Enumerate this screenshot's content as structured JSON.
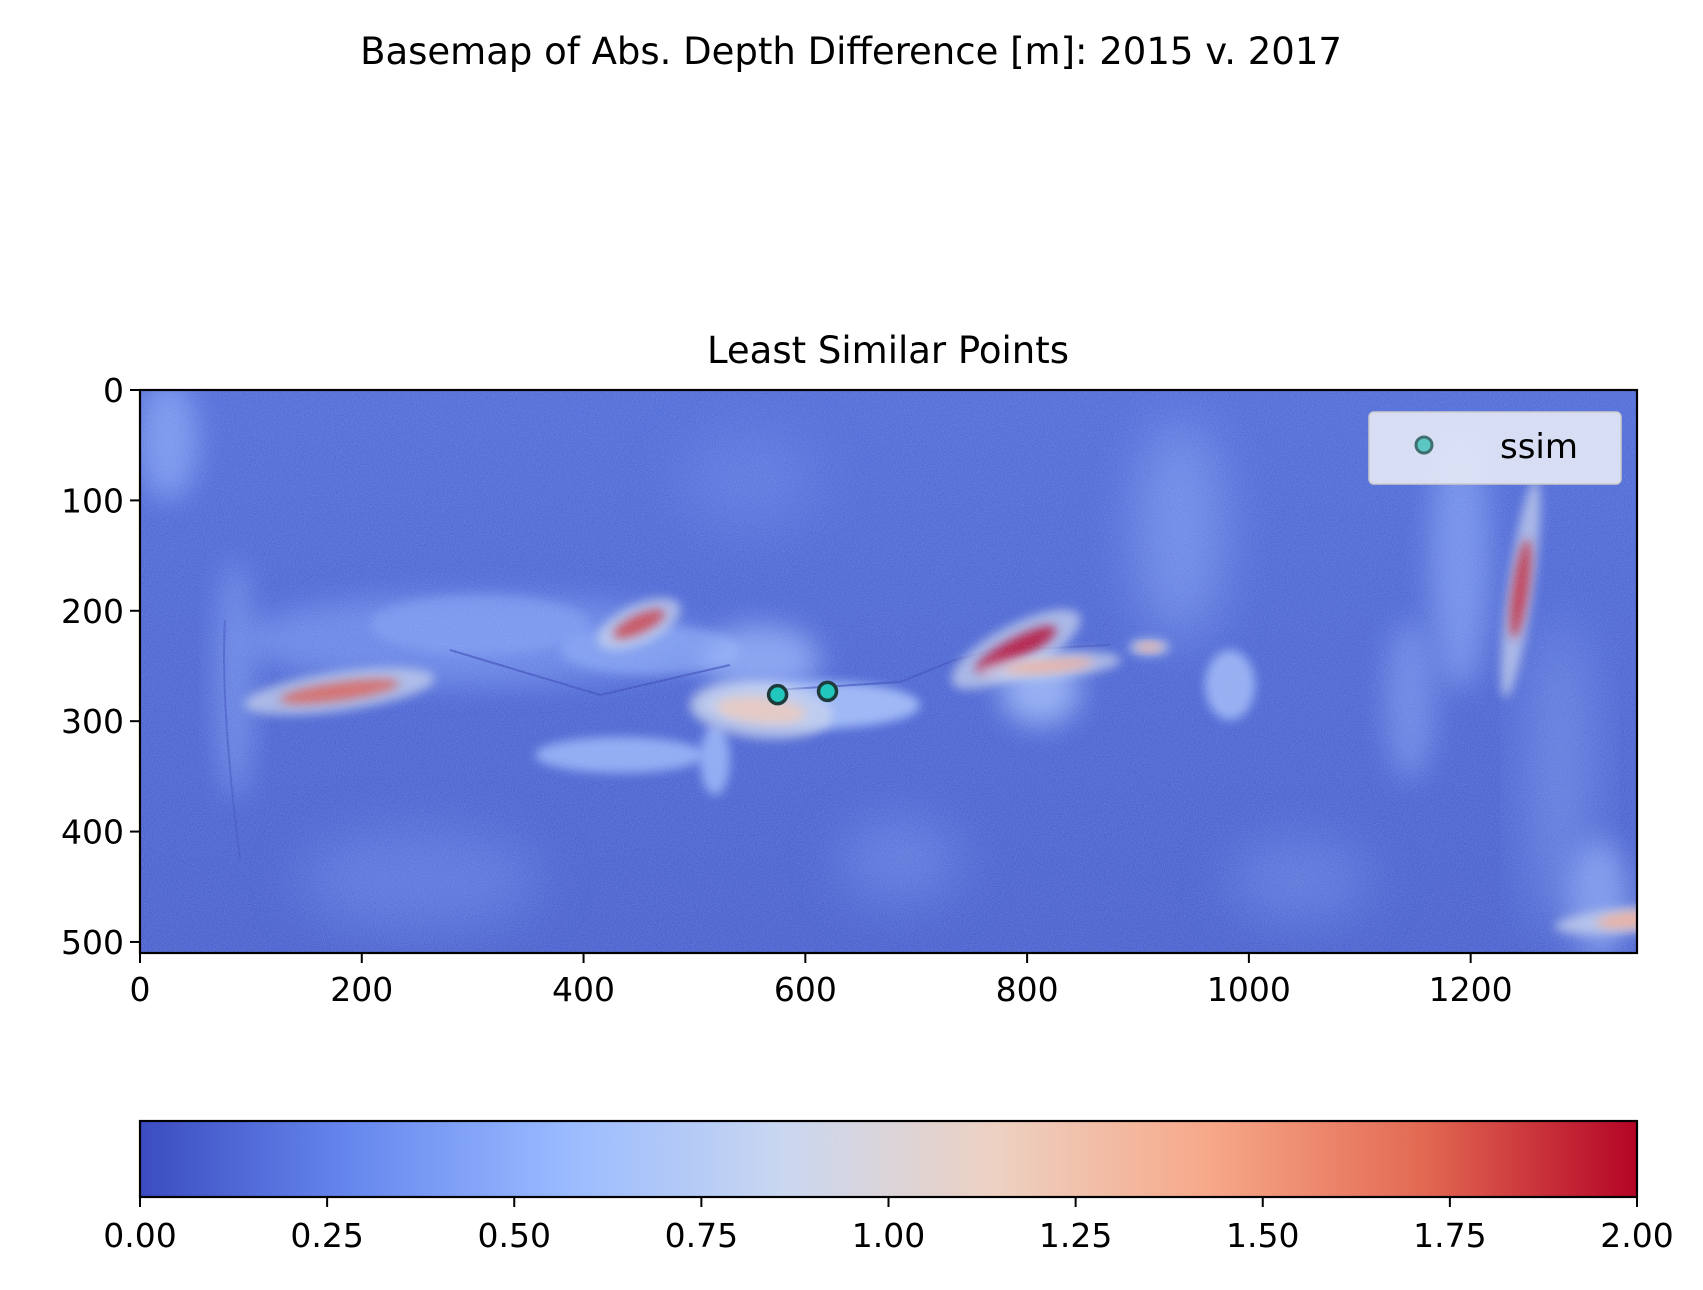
{
  "figure": {
    "suptitle": "Basemap of Abs. Depth Difference [m]: 2015 v. 2017"
  },
  "colors": {
    "colormap": [
      "#3b4cc0",
      "#6788ee",
      "#9abbff",
      "#c9d7f0",
      "#edd1c2",
      "#f7a889",
      "#e26952",
      "#b40426"
    ],
    "marker_face": "#21c7bd",
    "marker_edge": "#1d3b3b",
    "legend_marker_face": "#5cc6c3"
  },
  "chart_data": [
    {
      "type": "heatmap",
      "title": "Least Similar Points",
      "xlim": [
        0,
        1350
      ],
      "ylim": [
        510,
        0
      ],
      "y_inverted": true,
      "xticks": [
        "0",
        "200",
        "400",
        "600",
        "800",
        "1000",
        "1200"
      ],
      "yticks": [
        "0",
        "100",
        "200",
        "300",
        "400",
        "500"
      ],
      "grid": false,
      "legend": {
        "location": "upper right",
        "entries": [
          "ssim"
        ]
      },
      "series": [
        {
          "name": "ssim",
          "type": "scatter",
          "x": [
            575,
            620
          ],
          "y": [
            276,
            273
          ]
        }
      ],
      "hotspots": [
        {
          "x": 180,
          "y": 273,
          "value": 1.75
        },
        {
          "x": 450,
          "y": 212,
          "value": 1.85
        },
        {
          "x": 560,
          "y": 290,
          "value": 1.2
        },
        {
          "x": 790,
          "y": 235,
          "value": 2.0
        },
        {
          "x": 820,
          "y": 250,
          "value": 1.4
        },
        {
          "x": 910,
          "y": 233,
          "value": 1.4
        },
        {
          "x": 1245,
          "y": 180,
          "value": 1.9
        },
        {
          "x": 1345,
          "y": 480,
          "value": 1.4
        }
      ]
    },
    {
      "type": "colorbar",
      "range": [
        0,
        2
      ],
      "ticks": [
        "0.00",
        "0.25",
        "0.50",
        "0.75",
        "1.00",
        "1.25",
        "1.50",
        "1.75",
        "2.00"
      ]
    }
  ]
}
